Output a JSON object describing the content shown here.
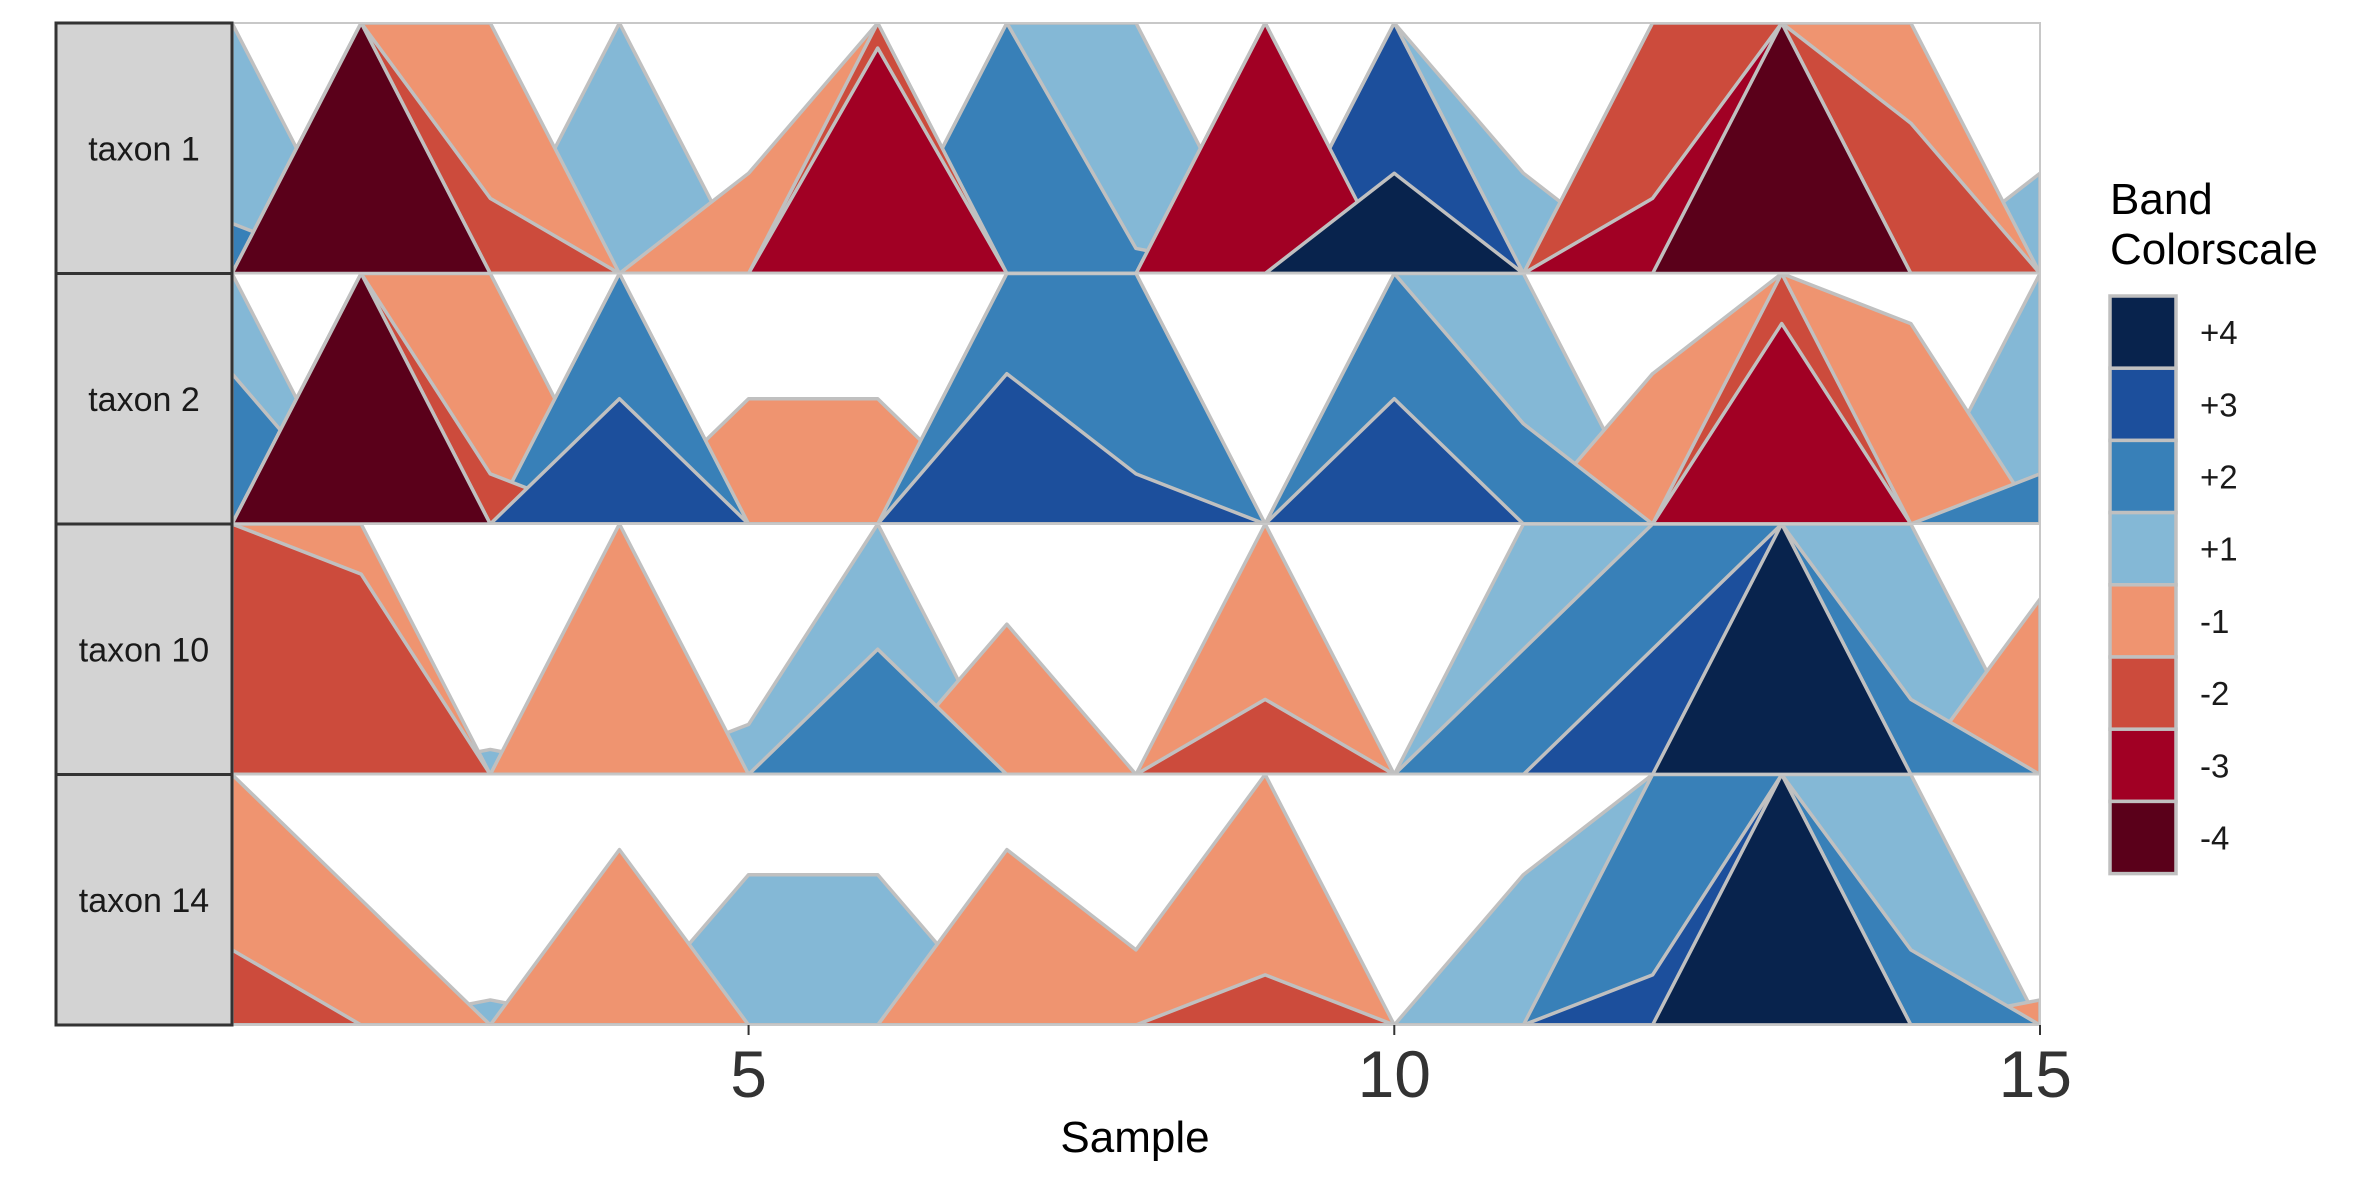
{
  "chart_data": {
    "type": "horizon",
    "xlabel": "Sample",
    "x_ticks": [
      5,
      10,
      15
    ],
    "xlim": [
      1,
      15
    ],
    "x": [
      1,
      2,
      3,
      4,
      5,
      6,
      7,
      8,
      9,
      10,
      11,
      12,
      13,
      14,
      15
    ],
    "band_size": 1,
    "colors": {
      "band_edge": "#c0c0c0",
      "strip_fill": "#d3d3d3",
      "strip_border": "#333333",
      "panel_border": "#c8c8c8"
    },
    "series": [
      {
        "name": "taxon 1",
        "values": [
          1.2,
          -4.8,
          -1.3,
          1.0,
          -0.4,
          -2.9,
          2.0,
          1.1,
          -3.0,
          3.4,
          0.4,
          -2.3,
          -4.1,
          -1.6,
          0.4
        ]
      },
      {
        "name": "taxon 2",
        "values": [
          1.6,
          -4.6,
          -1.2,
          2.5,
          -0.5,
          -0.5,
          2.6,
          2.2,
          0.0,
          2.5,
          1.4,
          -0.6,
          -2.8,
          -0.8,
          1.2
        ]
      },
      {
        "name": "taxon 10",
        "values": [
          -2.0,
          -1.8,
          0.1,
          -1.0,
          0.2,
          1.5,
          -0.6,
          0.0,
          -1.3,
          0.0,
          1.5,
          2.5,
          4.6,
          1.3,
          -0.7
        ]
      },
      {
        "name": "taxon 14",
        "values": [
          -1.3,
          -0.5,
          0.1,
          -0.7,
          0.6,
          0.6,
          -0.7,
          -0.3,
          -1.2,
          0.0,
          0.6,
          2.2,
          4.6,
          1.3,
          -0.1
        ]
      }
    ],
    "legend": {
      "title_lines": [
        "Band",
        "Colorscale"
      ],
      "position": "right",
      "items": [
        {
          "label": "+4",
          "color": "#08234d"
        },
        {
          "label": "+3",
          "color": "#1c4f9c"
        },
        {
          "label": "+2",
          "color": "#3880b8"
        },
        {
          "label": "+1",
          "color": "#84b8d6"
        },
        {
          "label": "-1",
          "color": "#ef9470"
        },
        {
          "label": "-2",
          "color": "#cc4b3c"
        },
        {
          "label": "-3",
          "color": "#a10024"
        },
        {
          "label": "-4",
          "color": "#5a001a"
        }
      ]
    }
  }
}
